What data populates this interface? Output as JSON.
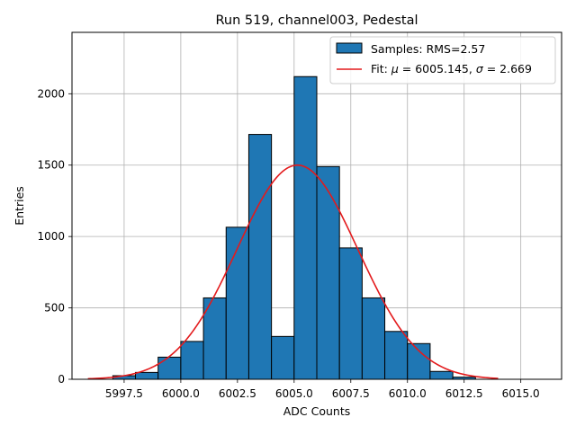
{
  "chart_data": {
    "type": "bar",
    "title": "Run 519, channel003, Pedestal",
    "xlabel": "ADC Counts",
    "ylabel": "Entries",
    "xlim": [
      5995.2,
      6016.8
    ],
    "ylim": [
      0,
      2430
    ],
    "x_ticks": [
      5997.5,
      6000.0,
      6002.5,
      6005.0,
      6007.5,
      6010.0,
      6012.5,
      6015.0
    ],
    "x_tick_labels": [
      "5997.5",
      "6000.0",
      "6002.5",
      "6005.0",
      "6007.5",
      "6010.0",
      "6012.5",
      "6015.0"
    ],
    "y_ticks": [
      0,
      500,
      1000,
      1500,
      2000
    ],
    "y_tick_labels": [
      "0",
      "500",
      "1000",
      "1500",
      "2000"
    ],
    "grid": true,
    "legend_position": "top-right",
    "histogram": {
      "name": "Samples: RMS=2.57",
      "bin_edges": [
        5997.0,
        5998.0,
        5999.0,
        6000.0,
        6001.0,
        6002.0,
        6003.0,
        6004.0,
        6005.0,
        6006.0,
        6007.0,
        6008.0,
        6009.0,
        6010.0,
        6011.0,
        6012.0,
        6013.0
      ],
      "values": [
        25,
        48,
        155,
        265,
        570,
        1065,
        1715,
        300,
        2120,
        1490,
        920,
        570,
        335,
        250,
        55,
        15
      ],
      "color": "#1f77b4",
      "edge_color": "#000000"
    },
    "fit": {
      "name_prefix": "Fit: ",
      "mu_symbol": "μ",
      "mu_value": " = 6005.145, ",
      "sigma_symbol": "σ",
      "sigma_value": " = 2.669",
      "mu": 6005.145,
      "sigma": 2.669,
      "amplitude": 1500,
      "x_range": [
        5995.9,
        6014.0
      ],
      "color": "#e31a1c"
    }
  }
}
